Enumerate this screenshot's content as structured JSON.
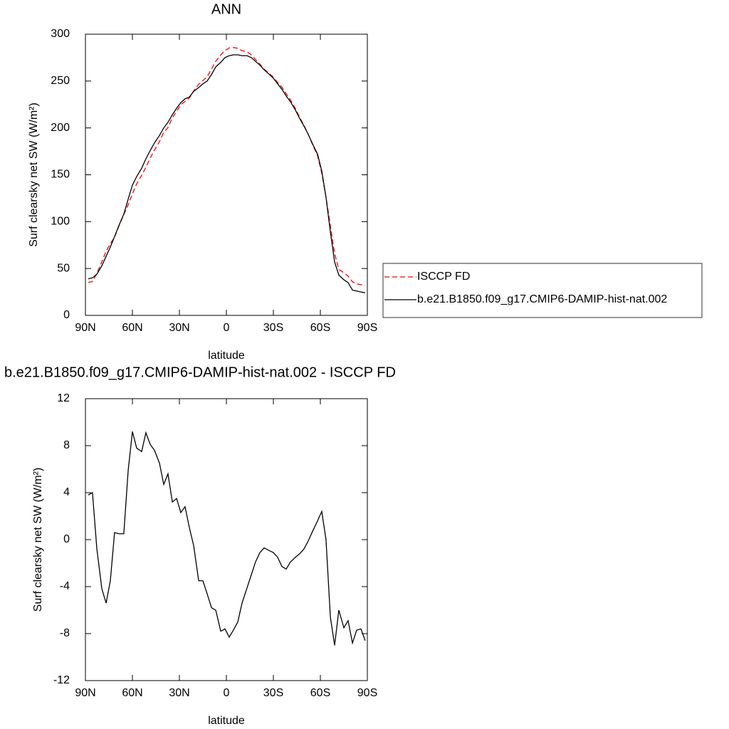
{
  "chart_data": [
    {
      "type": "line",
      "title": "ANN",
      "xlabel": "latitude",
      "ylabel": "Surf clearsky net SW (W/m²)",
      "xlim": [
        90,
        -90
      ],
      "ylim": [
        0,
        300
      ],
      "xticks": [
        {
          "value": 90,
          "label": "90N"
        },
        {
          "value": 60,
          "label": "60N"
        },
        {
          "value": 30,
          "label": "30N"
        },
        0,
        {
          "value": -30,
          "label": "30S"
        },
        {
          "value": -60,
          "label": "60S"
        },
        {
          "value": -90,
          "label": "90S"
        }
      ],
      "yticks": [
        0,
        50,
        100,
        150,
        200,
        250,
        300
      ],
      "legend": "outside-right",
      "x": [
        88.2,
        85.5,
        82.7,
        79.5,
        76.8,
        74.1,
        71.4,
        68.6,
        65.5,
        62.7,
        60,
        57.3,
        54.1,
        51.4,
        48.6,
        45.9,
        42.7,
        40,
        37.3,
        34.5,
        31.8,
        29.1,
        26.4,
        23.6,
        20.9,
        17.7,
        15,
        12.3,
        9.5,
        6.8,
        3.6,
        0.9,
        -1.8,
        -4.5,
        -7.3,
        -10,
        -13.2,
        -15.9,
        -18.6,
        -21.4,
        -24.1,
        -26.8,
        -30,
        -32.7,
        -35.5,
        -38.2,
        -40.9,
        -44.1,
        -46.8,
        -49.5,
        -52.3,
        -55,
        -58.2,
        -60.9,
        -63.6,
        -66.4,
        -69.1,
        -71.8,
        -75,
        -77.7,
        -80.5,
        -83.2,
        -85.9,
        -88.6
      ],
      "series": [
        {
          "name": "ISCCP FD",
          "color": "#ff0000",
          "style": "dashed",
          "values": [
            35.2,
            36,
            44.8,
            57.2,
            68.4,
            76.5,
            83.4,
            95.5,
            107.5,
            118.1,
            129.8,
            140.2,
            149.5,
            157.9,
            167.9,
            176.4,
            185.5,
            195.3,
            200.4,
            210.8,
            217.5,
            224.7,
            228.2,
            232,
            239.5,
            246.5,
            250.5,
            254.6,
            262.8,
            271,
            277.8,
            282.6,
            285.3,
            285.7,
            285,
            282.4,
            281.1,
            278,
            272.9,
            268.1,
            262.7,
            258.9,
            254.1,
            248.5,
            243.3,
            236.5,
            229.9,
            220.5,
            211.2,
            202.8,
            193.1,
            182.3,
            170.4,
            151.6,
            126,
            95.6,
            66,
            49,
            45.5,
            41.9,
            35.8,
            33.7,
            32.6,
            32.6
          ]
        },
        {
          "name": "b.e21.B1850.f09_g17.CMIP6-DAMIP-hist-nat.002",
          "color": "#000000",
          "style": "solid",
          "values": [
            39,
            40,
            44,
            53,
            63,
            73,
            84,
            96,
            108,
            124,
            139,
            148,
            157,
            167,
            176,
            184,
            192,
            200,
            206,
            214,
            221,
            227,
            231,
            233,
            239,
            243,
            247,
            250,
            257,
            265,
            270,
            275,
            277,
            278,
            278,
            277,
            277,
            275,
            271,
            267,
            262,
            258,
            253,
            247,
            241,
            234,
            228,
            219,
            210,
            202,
            193,
            183,
            172,
            154,
            126,
            89,
            57,
            43,
            38,
            35,
            27,
            26,
            25,
            24
          ]
        }
      ]
    },
    {
      "type": "line",
      "title": "b.e21.B1850.f09_g17.CMIP6-DAMIP-hist-nat.002 - ISCCP FD",
      "xlabel": "latitude",
      "ylabel": "Surf clearsky net SW (W/m²)",
      "xlim": [
        90,
        -90
      ],
      "ylim": [
        -12,
        12
      ],
      "xticks": [
        {
          "value": 90,
          "label": "90N"
        },
        {
          "value": 60,
          "label": "60N"
        },
        {
          "value": 30,
          "label": "30N"
        },
        0,
        {
          "value": -30,
          "label": "30S"
        },
        {
          "value": -60,
          "label": "60S"
        },
        {
          "value": -90,
          "label": "90S"
        }
      ],
      "yticks": [
        -12,
        -8,
        -4,
        0,
        4,
        8,
        12
      ],
      "x": [
        88.2,
        85.5,
        82.7,
        79.5,
        76.8,
        74.1,
        71.4,
        68.6,
        65.5,
        62.7,
        60,
        57.3,
        54.1,
        51.4,
        48.6,
        45.9,
        42.7,
        40,
        37.3,
        34.5,
        31.8,
        29.1,
        26.4,
        23.6,
        20.9,
        17.7,
        15,
        12.3,
        9.5,
        6.8,
        3.6,
        0.9,
        -1.8,
        -4.5,
        -7.3,
        -10,
        -13.2,
        -15.9,
        -18.6,
        -21.4,
        -24.1,
        -26.8,
        -30,
        -32.7,
        -35.5,
        -38.2,
        -40.9,
        -44.1,
        -46.8,
        -49.5,
        -52.3,
        -55,
        -58.2,
        -60.9,
        -63.6,
        -66.4,
        -69.1,
        -71.8,
        -75,
        -77.7,
        -80.5,
        -83.2,
        -85.9,
        -88.6
      ],
      "series": [
        {
          "color": "#000000",
          "style": "solid",
          "values": [
            3.8,
            4.0,
            -0.8,
            -4.2,
            -5.4,
            -3.5,
            0.6,
            0.5,
            0.5,
            5.9,
            9.2,
            7.8,
            7.5,
            9.1,
            8.1,
            7.6,
            6.5,
            4.7,
            5.6,
            3.2,
            3.5,
            2.3,
            2.8,
            1.0,
            -0.5,
            -3.5,
            -3.5,
            -4.6,
            -5.8,
            -6.0,
            -7.8,
            -7.6,
            -8.3,
            -7.7,
            -7.0,
            -5.4,
            -4.1,
            -3.0,
            -1.9,
            -1.1,
            -0.7,
            -0.9,
            -1.1,
            -1.5,
            -2.3,
            -2.5,
            -1.9,
            -1.5,
            -1.2,
            -0.8,
            -0.1,
            0.7,
            1.6,
            2.4,
            0,
            -6.6,
            -9.0,
            -6.0,
            -7.5,
            -6.9,
            -8.8,
            -7.7,
            -7.6,
            -8.6
          ]
        }
      ]
    }
  ]
}
